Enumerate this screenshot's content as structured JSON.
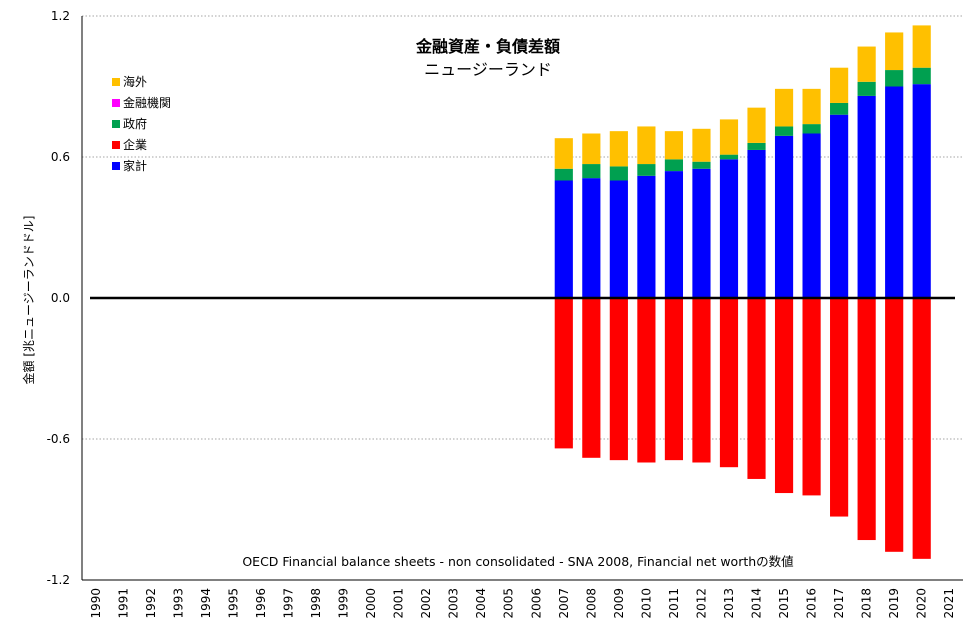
{
  "chart_data": {
    "type": "bar",
    "stacked": true,
    "title": "金融資産・負債差額",
    "subtitle": "ニュージーランド",
    "ylabel": "金額 [兆ニュージーランドドル]",
    "xlabel": "",
    "source_note": "OECD Financial balance sheets - non consolidated - SNA 2008, Financial net worthの数値",
    "ylim": [
      -1.2,
      1.2
    ],
    "yticks": [
      1.2,
      0.6,
      0.0,
      -0.6,
      -1.2
    ],
    "ytick_labels": [
      "1.2",
      "0.6",
      "0.0",
      "-0.6",
      "-1.2"
    ],
    "grid": "horizontal-dotted",
    "legend_position": "top-left",
    "legend": [
      {
        "label": "海外",
        "color": "#ffc000"
      },
      {
        "label": "金融機関",
        "color": "#ff00ff"
      },
      {
        "label": "政府",
        "color": "#00a050"
      },
      {
        "label": "企業",
        "color": "#ff0000"
      },
      {
        "label": "家計",
        "color": "#0000ff"
      }
    ],
    "categories": [
      "1990",
      "1991",
      "1992",
      "1993",
      "1994",
      "1995",
      "1996",
      "1997",
      "1998",
      "1999",
      "2000",
      "2001",
      "2002",
      "2003",
      "2004",
      "2005",
      "2006",
      "2007",
      "2008",
      "2009",
      "2010",
      "2011",
      "2012",
      "2013",
      "2014",
      "2015",
      "2016",
      "2017",
      "2018",
      "2019",
      "2020",
      "2021"
    ],
    "series": [
      {
        "name": "家計",
        "color": "#0000ff",
        "values": [
          null,
          null,
          null,
          null,
          null,
          null,
          null,
          null,
          null,
          null,
          null,
          null,
          null,
          null,
          null,
          null,
          null,
          0.5,
          0.51,
          0.5,
          0.52,
          0.54,
          0.55,
          0.59,
          0.63,
          0.69,
          0.7,
          0.78,
          0.86,
          0.9,
          0.91,
          null
        ]
      },
      {
        "name": "政府",
        "color": "#00a050",
        "values": [
          null,
          null,
          null,
          null,
          null,
          null,
          null,
          null,
          null,
          null,
          null,
          null,
          null,
          null,
          null,
          null,
          null,
          0.05,
          0.06,
          0.06,
          0.05,
          0.05,
          0.03,
          0.02,
          0.03,
          0.04,
          0.04,
          0.05,
          0.06,
          0.07,
          0.07,
          null
        ]
      },
      {
        "name": "金融機関",
        "color": "#ff00ff",
        "values": [
          null,
          null,
          null,
          null,
          null,
          null,
          null,
          null,
          null,
          null,
          null,
          null,
          null,
          null,
          null,
          null,
          null,
          0,
          0,
          0,
          0,
          0,
          0,
          0,
          0,
          0,
          0,
          0,
          0,
          0,
          0,
          null
        ]
      },
      {
        "name": "海外",
        "color": "#ffc000",
        "values": [
          null,
          null,
          null,
          null,
          null,
          null,
          null,
          null,
          null,
          null,
          null,
          null,
          null,
          null,
          null,
          null,
          null,
          0.13,
          0.13,
          0.15,
          0.16,
          0.12,
          0.14,
          0.15,
          0.15,
          0.16,
          0.15,
          0.15,
          0.15,
          0.16,
          0.18,
          null
        ]
      },
      {
        "name": "企業",
        "color": "#ff0000",
        "values": [
          null,
          null,
          null,
          null,
          null,
          null,
          null,
          null,
          null,
          null,
          null,
          null,
          null,
          null,
          null,
          null,
          null,
          -0.64,
          -0.68,
          -0.69,
          -0.7,
          -0.69,
          -0.7,
          -0.72,
          -0.77,
          -0.83,
          -0.84,
          -0.93,
          -1.03,
          -1.08,
          -1.11,
          null
        ]
      }
    ]
  }
}
